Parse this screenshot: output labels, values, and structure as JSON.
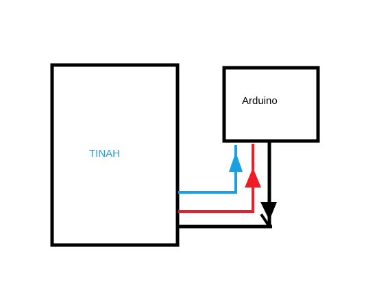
{
  "blocks": {
    "tinah": {
      "label": "TINAH"
    },
    "arduino": {
      "label": "Arduino"
    }
  },
  "colors": {
    "outline": "#000000",
    "tinah_text": "#1aa0e0",
    "blue_wire": "#1aa0e0",
    "red_wire": "#ee1c24",
    "black_wire": "#000000",
    "background": "#ffffff"
  }
}
